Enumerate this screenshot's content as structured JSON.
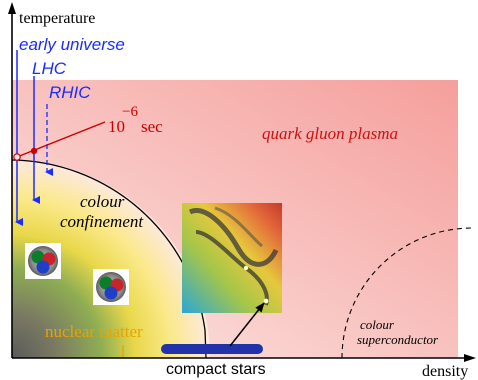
{
  "axes": {
    "y_label": "temperature",
    "x_label": "density"
  },
  "trajectories": {
    "early_universe": "early  universe",
    "lhc": "LHC",
    "rhic": "RHIC"
  },
  "time_marker": {
    "base": "10",
    "exponent": "−6",
    "unit": "sec"
  },
  "regions": {
    "qgp": "quark  gluon plasma",
    "confinement_line1": "colour",
    "confinement_line2": "confinement",
    "nuclear_matter": "nuclear   matter",
    "compact_stars": "compact  stars",
    "superconductor_line1": "colour",
    "superconductor_line2": "superconductor"
  },
  "icons": {
    "hadron_1": "hadron-icon",
    "hadron_2": "hadron-icon",
    "star_image": "neutron-star-image"
  },
  "colors": {
    "qgp_background": "#f7a9a6",
    "trajectory_blue": "#1a2cff",
    "marker_red": "#cc0000",
    "nuclear_text": "#e8a300",
    "compact_bar": "#2233aa"
  }
}
